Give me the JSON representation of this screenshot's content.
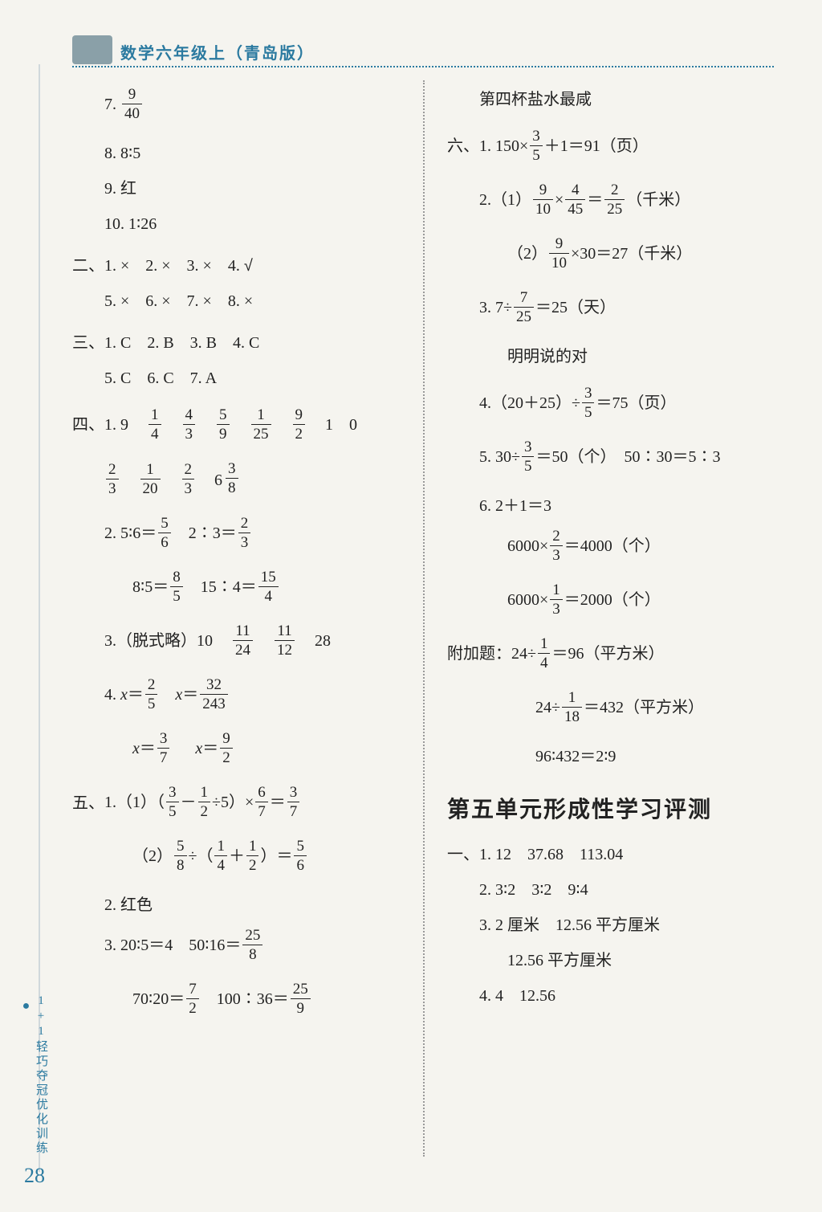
{
  "header": {
    "title": "数学六年级上（青岛版）"
  },
  "sidebar": {
    "strip": "1+1轻巧夺冠优化训练"
  },
  "page_number": "28",
  "left": {
    "l7_prefix": "7. ",
    "l7_frac": {
      "n": "9",
      "d": "40"
    },
    "l8": "8. 8∶5",
    "l9": "9. 红",
    "l10": "10. 1∶26",
    "sec2_label": "二、",
    "sec2_row1": "1. ×　2. ×　3. ×　4. ",
    "sec2_row1_sym": "√",
    "sec2_row2": "5. ×　6. ×　7. ×　8. ×",
    "sec3_label": "三、",
    "sec3_row1": "1. C　2. B　3. B　4. C",
    "sec3_row2": "5. C　6. C　7. A",
    "sec4_label": "四、",
    "sec4_1_lead": "1. 9",
    "sec4_1_fracs": [
      {
        "n": "1",
        "d": "4"
      },
      {
        "n": "4",
        "d": "3"
      },
      {
        "n": "5",
        "d": "9"
      },
      {
        "n": "1",
        "d": "25"
      },
      {
        "n": "9",
        "d": "2"
      }
    ],
    "sec4_1_tail": "1　0",
    "sec4_1b_fracs": [
      {
        "n": "2",
        "d": "3"
      },
      {
        "n": "1",
        "d": "20"
      },
      {
        "n": "2",
        "d": "3"
      }
    ],
    "sec4_1b_mixed": {
      "w": "6",
      "n": "3",
      "d": "8"
    },
    "sec4_2a_pre": "2. 5∶6＝",
    "sec4_2a_frac": {
      "n": "5",
      "d": "6"
    },
    "sec4_2a_mid": "　2∶3＝",
    "sec4_2a_frac2": {
      "n": "2",
      "d": "3"
    },
    "sec4_2b_pre": "8∶5＝",
    "sec4_2b_frac": {
      "n": "8",
      "d": "5"
    },
    "sec4_2b_mid": "　15∶4＝",
    "sec4_2b_frac2": {
      "n": "15",
      "d": "4"
    },
    "sec4_3_pre": "3.（脱式略）10",
    "sec4_3_fracs": [
      {
        "n": "11",
        "d": "24"
      },
      {
        "n": "11",
        "d": "12"
      }
    ],
    "sec4_3_tail": "28",
    "sec4_4a_pre": "4. ",
    "sec4_4a_x": "x",
    "sec4_4a_eq": "＝",
    "sec4_4a_frac": {
      "n": "2",
      "d": "5"
    },
    "sec4_4a_mid": "　",
    "sec4_4a_frac2": {
      "n": "32",
      "d": "243"
    },
    "sec4_4b_frac": {
      "n": "3",
      "d": "7"
    },
    "sec4_4b_frac2": {
      "n": "9",
      "d": "2"
    },
    "sec5_label": "五、",
    "sec5_1_pre": "1.（1）（",
    "sec5_1_frac1": {
      "n": "3",
      "d": "5"
    },
    "sec5_1_mid1": "－",
    "sec5_1_frac2": {
      "n": "1",
      "d": "2"
    },
    "sec5_1_mid2": "÷5）×",
    "sec5_1_frac3": {
      "n": "6",
      "d": "7"
    },
    "sec5_1_eq": "＝",
    "sec5_1_frac4": {
      "n": "3",
      "d": "7"
    },
    "sec5_2_pre": "（2）",
    "sec5_2_frac1": {
      "n": "5",
      "d": "8"
    },
    "sec5_2_mid1": "÷（",
    "sec5_2_frac2": {
      "n": "1",
      "d": "4"
    },
    "sec5_2_mid2": "＋",
    "sec5_2_frac3": {
      "n": "1",
      "d": "2"
    },
    "sec5_2_mid3": "）＝",
    "sec5_2_frac4": {
      "n": "5",
      "d": "6"
    },
    "sec5_p2": "2. 红色",
    "sec5_p3a_pre": "3. 20∶5＝4　50∶16＝",
    "sec5_p3a_frac": {
      "n": "25",
      "d": "8"
    },
    "sec5_p3b_pre": "70∶20＝",
    "sec5_p3b_frac": {
      "n": "7",
      "d": "2"
    },
    "sec5_p3b_mid": "　100∶36＝",
    "sec5_p3b_frac2": {
      "n": "25",
      "d": "9"
    }
  },
  "right": {
    "r_top": "第四杯盐水最咸",
    "sec6_label": "六、",
    "r6_1_pre": "1. 150×",
    "r6_1_frac": {
      "n": "3",
      "d": "5"
    },
    "r6_1_suf": "＋1＝91（页）",
    "r6_2a_pre": "2.（1）",
    "r6_2a_frac1": {
      "n": "9",
      "d": "10"
    },
    "r6_2a_mid": "×",
    "r6_2a_frac2": {
      "n": "4",
      "d": "45"
    },
    "r6_2a_eq": "＝",
    "r6_2a_frac3": {
      "n": "2",
      "d": "25"
    },
    "r6_2a_suf": "（千米）",
    "r6_2b_pre": "（2）",
    "r6_2b_frac": {
      "n": "9",
      "d": "10"
    },
    "r6_2b_suf": "×30＝27（千米）",
    "r6_3_pre": "3. 7÷",
    "r6_3_frac": {
      "n": "7",
      "d": "25"
    },
    "r6_3_suf": "＝25（天）",
    "r6_3_note": "明明说的对",
    "r6_4_pre": "4.（20＋25）÷",
    "r6_4_frac": {
      "n": "3",
      "d": "5"
    },
    "r6_4_suf": "＝75（页）",
    "r6_5_pre": "5. 30÷",
    "r6_5_frac": {
      "n": "3",
      "d": "5"
    },
    "r6_5_suf": "＝50（个）　50∶30＝5∶3",
    "r6_6a": "6. 2＋1＝3",
    "r6_6b_pre": "6000×",
    "r6_6b_frac": {
      "n": "2",
      "d": "3"
    },
    "r6_6b_suf": "＝4000（个）",
    "r6_6c_pre": "6000×",
    "r6_6c_frac": {
      "n": "1",
      "d": "3"
    },
    "r6_6c_suf": "＝2000（个）",
    "r_extra_pre": "附加题：24÷",
    "r_extra_frac": {
      "n": "1",
      "d": "4"
    },
    "r_extra_suf": "＝96（平方米）",
    "r_extra2_pre": "24÷",
    "r_extra2_frac": {
      "n": "1",
      "d": "18"
    },
    "r_extra2_suf": "＝432（平方米）",
    "r_extra3": "96∶432＝2∶9",
    "unit5_heading": "第五单元形成性学习评测",
    "u5_1_label": "一、",
    "u5_1_row1": "1. 12　37.68　113.04",
    "u5_1_row2": "2. 3∶2　3∶2　9∶4",
    "u5_1_row3": "3. 2 厘米　12.56 平方厘米",
    "u5_1_row3b": "12.56 平方厘米",
    "u5_1_row4": "4. 4　12.56"
  }
}
